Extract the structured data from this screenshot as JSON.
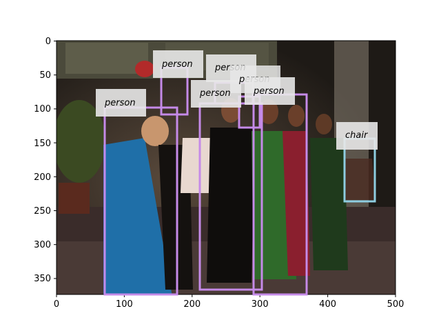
{
  "image": {
    "description_colors": {
      "background_dark": "#2a2520",
      "wall": "#3d3a2f",
      "window_light": "#6b6a55",
      "floor": "#4a3a36",
      "blue_saree": "#1f6fa8",
      "green_saree": "#2f6a2a",
      "red_saree": "#8a1f2e"
    }
  },
  "axes": {
    "x_ticks": [
      "0",
      "100",
      "200",
      "300",
      "400",
      "500"
    ],
    "y_ticks": [
      "0",
      "50",
      "100",
      "150",
      "200",
      "250",
      "300",
      "350"
    ]
  },
  "detections": [
    {
      "label": "person",
      "class": "person",
      "color": "#c58ae8"
    },
    {
      "label": "person",
      "class": "person",
      "color": "#c58ae8"
    },
    {
      "label": "person",
      "class": "person",
      "color": "#c58ae8"
    },
    {
      "label": "person",
      "class": "person",
      "color": "#c58ae8"
    },
    {
      "label": "person",
      "class": "person",
      "color": "#c58ae8"
    },
    {
      "label": "person",
      "class": "person",
      "color": "#c58ae8"
    },
    {
      "label": "chair",
      "class": "chair",
      "color": "#8ecde0"
    }
  ]
}
